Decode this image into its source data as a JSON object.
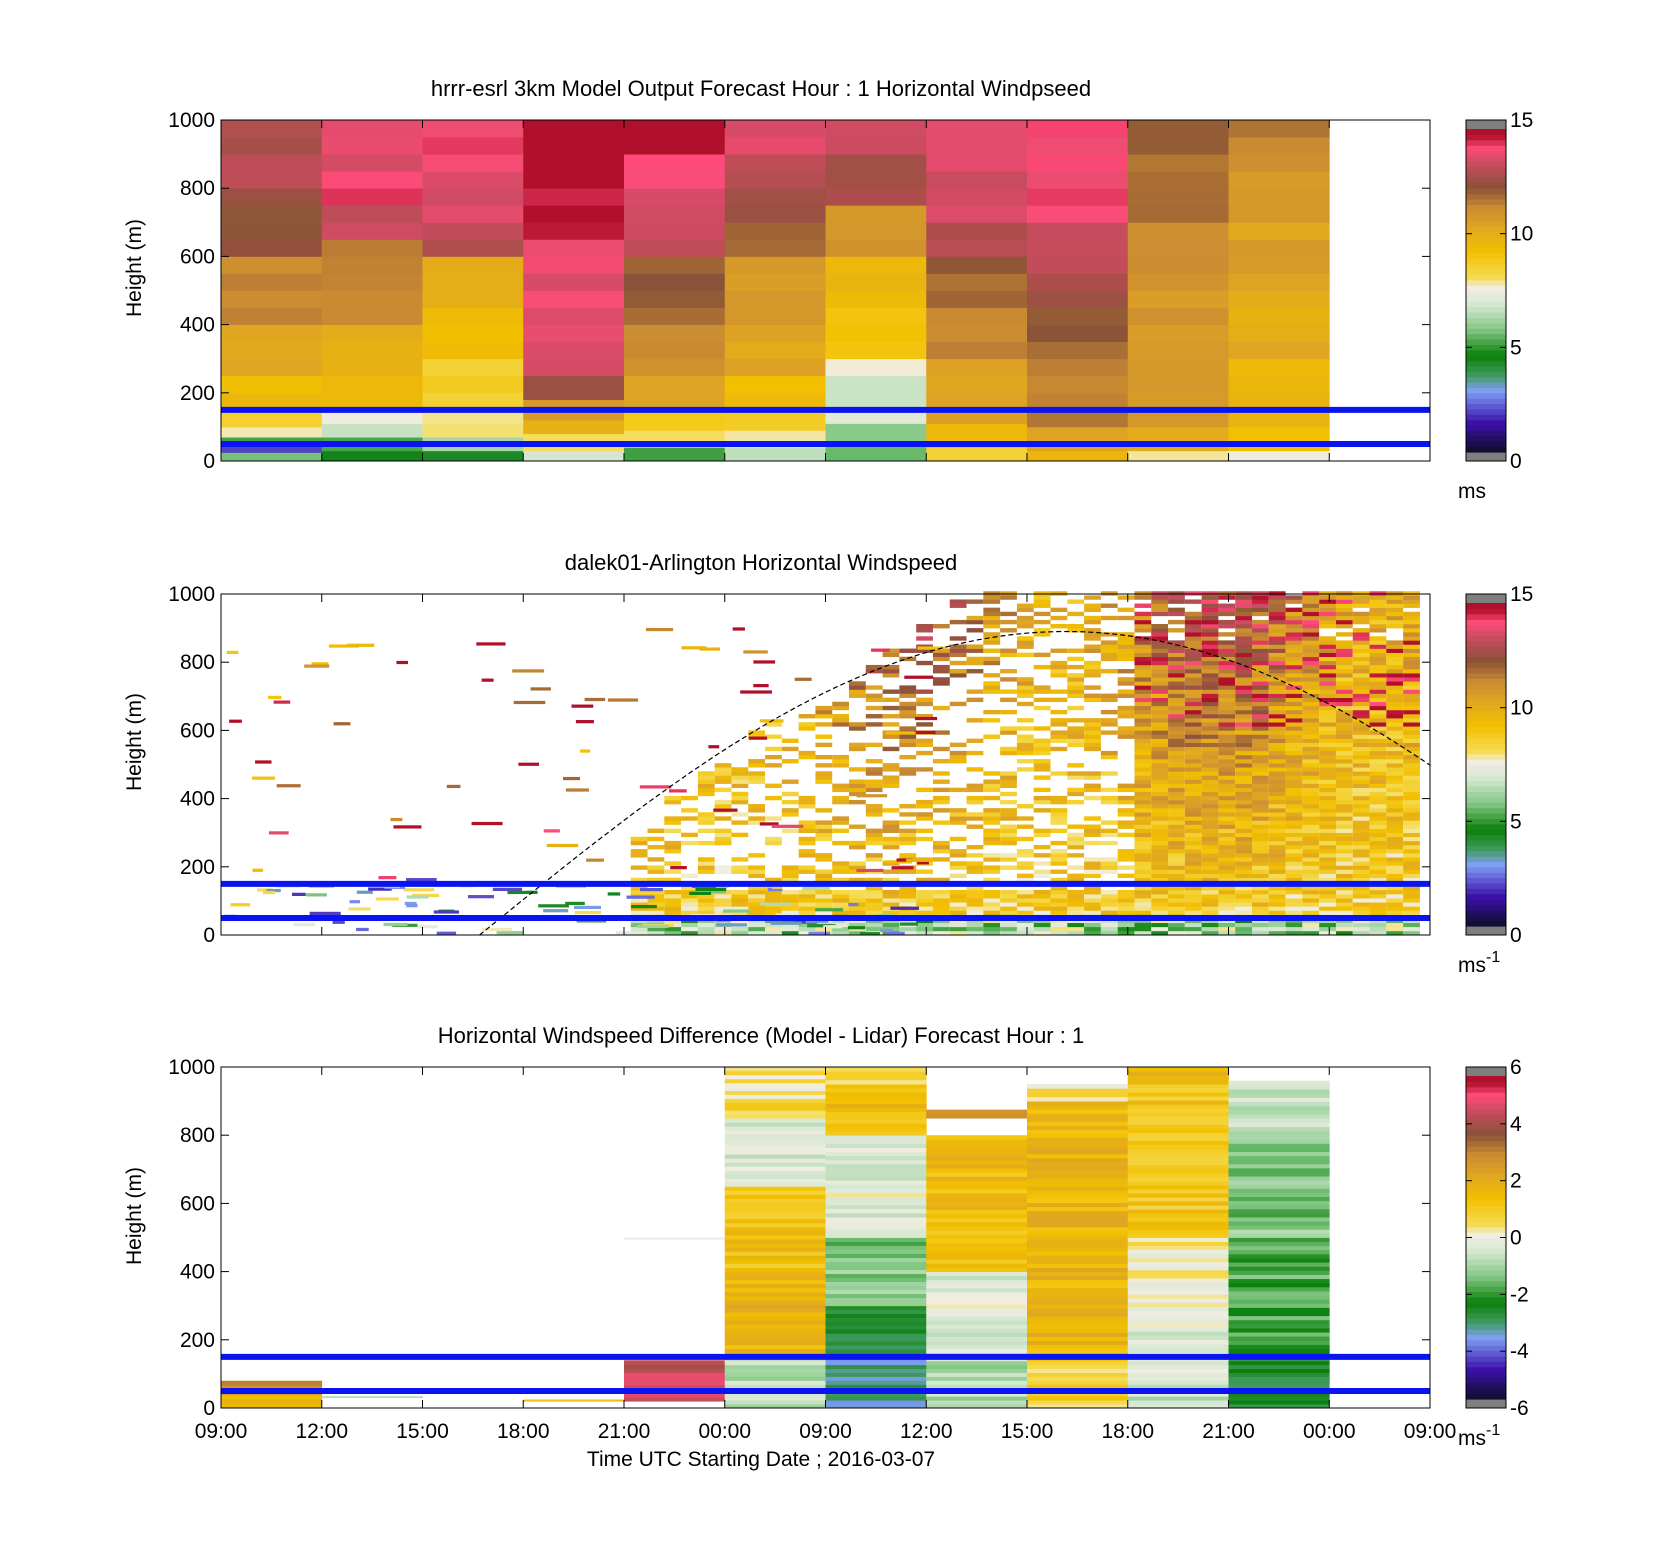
{
  "chart_data": [
    {
      "type": "heatmap",
      "title": "hrrr-esrl 3km Model Output   Forecast Hour : 1 Horizontal Windpseed",
      "ylabel": "Height (m)",
      "ylim": [
        0,
        1000
      ],
      "yticks": [
        "0",
        "200",
        "400",
        "600",
        "800",
        "1000"
      ],
      "xticks": [],
      "colorbar": {
        "ticks": [
          "0",
          "5",
          "10",
          "15"
        ],
        "range": [
          0,
          15
        ],
        "unit": "ms",
        "unit_sup": ""
      },
      "reference_lines_m": [
        50,
        150
      ],
      "cells": [
        {
          "t": 0,
          "levels": [
            [
              0,
              25,
              5.5
            ],
            [
              25,
              50,
              2.0
            ],
            [
              50,
              70,
              5.0
            ],
            [
              70,
              100,
              7.5
            ],
            [
              100,
              150,
              8.5
            ],
            [
              150,
              250,
              9.6
            ],
            [
              250,
              400,
              10.2
            ],
            [
              400,
              600,
              11.4
            ],
            [
              600,
              800,
              12.4
            ],
            [
              800,
              1000,
              13.0
            ]
          ]
        },
        {
          "t": 1,
          "levels": [
            [
              0,
              30,
              4.2
            ],
            [
              30,
              70,
              5.2
            ],
            [
              70,
              110,
              6.8
            ],
            [
              110,
              150,
              7.6
            ],
            [
              150,
              250,
              9.4
            ],
            [
              250,
              400,
              10.0
            ],
            [
              400,
              650,
              11.6
            ],
            [
              650,
              750,
              13.2
            ],
            [
              750,
              850,
              14.2
            ],
            [
              850,
              1000,
              13.6
            ]
          ]
        },
        {
          "t": 2,
          "levels": [
            [
              0,
              30,
              4.3
            ],
            [
              30,
              70,
              6.2
            ],
            [
              70,
              150,
              7.8
            ],
            [
              150,
              300,
              8.8
            ],
            [
              300,
              450,
              9.4
            ],
            [
              450,
              600,
              10.2
            ],
            [
              600,
              700,
              13.0
            ],
            [
              700,
              850,
              13.8
            ],
            [
              850,
              1000,
              14.2
            ]
          ]
        },
        {
          "t": 3,
          "levels": [
            [
              0,
              30,
              7.0
            ],
            [
              30,
              80,
              8.2
            ],
            [
              80,
              120,
              10.0
            ],
            [
              120,
              180,
              11.0
            ],
            [
              180,
              250,
              12.4
            ],
            [
              250,
              450,
              13.6
            ],
            [
              450,
              650,
              13.9
            ],
            [
              650,
              800,
              14.6
            ],
            [
              800,
              1000,
              15.5
            ]
          ]
        },
        {
          "t": 4,
          "levels": [
            [
              0,
              40,
              4.8
            ],
            [
              40,
              90,
              8.0
            ],
            [
              90,
              150,
              9.2
            ],
            [
              150,
              250,
              10.4
            ],
            [
              250,
              400,
              11.2
            ],
            [
              400,
              600,
              12.0
            ],
            [
              600,
              800,
              13.4
            ],
            [
              800,
              900,
              14.0
            ],
            [
              900,
              1000,
              15.5
            ]
          ]
        },
        {
          "t": 5,
          "levels": [
            [
              0,
              40,
              6.8
            ],
            [
              40,
              90,
              8.0
            ],
            [
              90,
              150,
              8.8
            ],
            [
              150,
              250,
              9.4
            ],
            [
              250,
              400,
              10.4
            ],
            [
              400,
              600,
              11.0
            ],
            [
              600,
              700,
              11.8
            ],
            [
              700,
              800,
              12.4
            ],
            [
              800,
              900,
              13.0
            ],
            [
              900,
              1000,
              13.9
            ]
          ]
        },
        {
          "t": 6,
          "levels": [
            [
              0,
              50,
              5.6
            ],
            [
              50,
              110,
              5.8
            ],
            [
              110,
              150,
              7.0
            ],
            [
              150,
              250,
              6.6
            ],
            [
              250,
              300,
              7.7
            ],
            [
              300,
              450,
              9.0
            ],
            [
              450,
              600,
              9.8
            ],
            [
              600,
              750,
              11.0
            ],
            [
              750,
              900,
              12.8
            ],
            [
              900,
              1000,
              13.6
            ]
          ]
        },
        {
          "t": 7,
          "levels": [
            [
              0,
              40,
              8.8
            ],
            [
              40,
              110,
              9.6
            ],
            [
              110,
              300,
              10.4
            ],
            [
              300,
              450,
              11.4
            ],
            [
              450,
              600,
              12.0
            ],
            [
              600,
              700,
              13.2
            ],
            [
              700,
              850,
              13.6
            ],
            [
              850,
              1000,
              14.0
            ]
          ]
        },
        {
          "t": 8,
          "levels": [
            [
              0,
              30,
              9.6
            ],
            [
              30,
              100,
              10.4
            ],
            [
              100,
              350,
              11.6
            ],
            [
              350,
              500,
              12.4
            ],
            [
              500,
              600,
              13.0
            ],
            [
              600,
              700,
              13.5
            ],
            [
              700,
              850,
              14.0
            ],
            [
              850,
              1000,
              14.0
            ]
          ]
        },
        {
          "t": 9,
          "levels": [
            [
              0,
              30,
              8.0
            ],
            [
              30,
              100,
              10.2
            ],
            [
              100,
              300,
              10.8
            ],
            [
              300,
              500,
              11.0
            ],
            [
              500,
              700,
              11.3
            ],
            [
              700,
              900,
              11.8
            ],
            [
              900,
              1000,
              12.2
            ]
          ]
        },
        {
          "t": 10,
          "levels": [
            [
              0,
              30,
              7.5
            ],
            [
              30,
              100,
              9.4
            ],
            [
              100,
              300,
              9.6
            ],
            [
              300,
              500,
              10.2
            ],
            [
              500,
              700,
              10.6
            ],
            [
              700,
              900,
              11.0
            ],
            [
              900,
              1000,
              11.5
            ]
          ]
        }
      ]
    },
    {
      "type": "heatmap",
      "title": "dalek01-Arlington  Horizontal Windspeed",
      "ylabel": "Height (m)",
      "ylim": [
        0,
        1000
      ],
      "yticks": [
        "0",
        "200",
        "400",
        "600",
        "800",
        "1000"
      ],
      "xticks": [],
      "colorbar": {
        "ticks": [
          "0",
          "5",
          "10",
          "15"
        ],
        "range": [
          0,
          15
        ],
        "unit": "ms",
        "unit_sup": "-1"
      },
      "reference_lines_m": [
        50,
        150
      ],
      "dense_start_h": 27,
      "sparse_end_h": 21,
      "sun_curve": {
        "start_h": 7.7,
        "peak_h": 15,
        "peak_height_m": 890,
        "end_h": 22.3
      }
    },
    {
      "type": "heatmap",
      "title": "Horizontal Windspeed Difference (Model - Lidar) Forecast Hour : 1",
      "ylabel": "Height (m)",
      "xlabel": "Time UTC  Starting Date ; 2016-03-07",
      "ylim": [
        0,
        1000
      ],
      "yticks": [
        "0",
        "200",
        "400",
        "600",
        "800",
        "1000"
      ],
      "xticks": [
        "09:00",
        "12:00",
        "15:00",
        "18:00",
        "21:00",
        "00:00",
        "09:00",
        "12:00",
        "15:00",
        "18:00",
        "21:00",
        "00:00",
        "09:00"
      ],
      "colorbar": {
        "ticks": [
          "-6",
          "-4",
          "-2",
          "0",
          "2",
          "4",
          "6"
        ],
        "range": [
          -6,
          6
        ],
        "unit": "ms",
        "unit_sup": "-1"
      },
      "reference_lines_m": [
        50,
        150
      ],
      "cells": [
        {
          "t": 0,
          "levels": [
            [
              0,
              40,
              1.6
            ],
            [
              40,
              80,
              3.2
            ]
          ]
        },
        {
          "t": 1,
          "levels": [
            [
              30,
              35,
              -0.6
            ]
          ]
        },
        {
          "t": 3,
          "levels": [
            [
              20,
              25,
              1.4
            ]
          ]
        },
        {
          "t": 4,
          "levels": [
            [
              20,
              140,
              4.6
            ],
            [
              495,
              500,
              0.4
            ]
          ]
        },
        {
          "t": 5,
          "levels": [
            [
              0,
              150,
              -0.8
            ],
            [
              150,
              400,
              1.8
            ],
            [
              400,
              650,
              1.4
            ],
            [
              650,
              850,
              -0.4
            ],
            [
              850,
              1000,
              0.6
            ]
          ]
        },
        {
          "t": 6,
          "levels": [
            [
              0,
              150,
              -3.4
            ],
            [
              150,
              300,
              -2.6
            ],
            [
              300,
              500,
              -1.4
            ],
            [
              500,
              800,
              -0.2
            ],
            [
              800,
              950,
              1.6
            ],
            [
              950,
              1000,
              0.8
            ]
          ]
        },
        {
          "t": 7,
          "levels": [
            [
              0,
              150,
              -0.9
            ],
            [
              150,
              400,
              -0.3
            ],
            [
              400,
              800,
              1.6
            ],
            [
              850,
              875,
              3.2
            ]
          ]
        },
        {
          "t": 8,
          "levels": [
            [
              0,
              150,
              0.9
            ],
            [
              150,
              900,
              1.8
            ],
            [
              900,
              950,
              0.4
            ]
          ]
        },
        {
          "t": 9,
          "levels": [
            [
              0,
              150,
              -0.5
            ],
            [
              150,
              250,
              -0.2
            ],
            [
              250,
              500,
              0.3
            ],
            [
              500,
              950,
              1.2
            ],
            [
              950,
              1000,
              2.0
            ]
          ]
        },
        {
          "t": 10,
          "levels": [
            [
              0,
              150,
              -2.8
            ],
            [
              150,
              500,
              -1.9
            ],
            [
              500,
              800,
              -1.4
            ],
            [
              800,
              960,
              -0.6
            ]
          ]
        }
      ]
    }
  ]
}
